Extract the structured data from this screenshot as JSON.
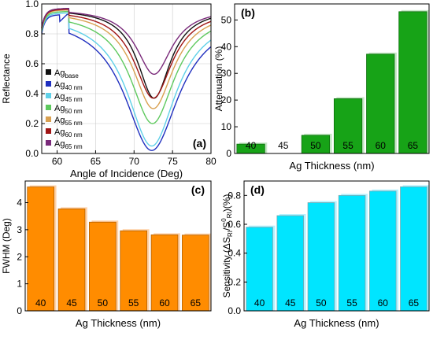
{
  "chart_data": [
    {
      "type": "line",
      "label": "(a)",
      "xlabel": "Angle of Incidence (Deg)",
      "ylabel": "Reflectance",
      "xlim": [
        58,
        80
      ],
      "ylim": [
        0,
        1.0
      ],
      "xticks": [
        60,
        65,
        70,
        75,
        80
      ],
      "yticks": [
        0.0,
        0.2,
        0.4,
        0.6,
        0.8,
        1.0
      ],
      "grid": true,
      "legend_position": "left",
      "series": [
        {
          "name": "Ag",
          "sub": "base",
          "color": "#111111",
          "x0": 72.6,
          "width": 2.6,
          "min": 0.37,
          "top": 0.97
        },
        {
          "name": "Ag",
          "sub": "40 nm",
          "color": "#1f2fbf",
          "x0": 72.3,
          "width": 4.3,
          "min": 0.02,
          "top": 0.93
        },
        {
          "name": "Ag",
          "sub": "45 nm",
          "color": "#5fd0e8",
          "x0": 72.3,
          "width": 3.9,
          "min": 0.05,
          "top": 0.94
        },
        {
          "name": "Ag",
          "sub": "50 nm",
          "color": "#5ec95e",
          "x0": 72.4,
          "width": 3.5,
          "min": 0.2,
          "top": 0.95
        },
        {
          "name": "Ag",
          "sub": "55 nm",
          "color": "#d9a050",
          "x0": 72.5,
          "width": 3.2,
          "min": 0.3,
          "top": 0.96
        },
        {
          "name": "Ag",
          "sub": "60 nm",
          "color": "#a01414",
          "x0": 72.5,
          "width": 3.0,
          "min": 0.37,
          "top": 0.965
        },
        {
          "name": "Ag",
          "sub": "65 nm",
          "color": "#7a2a7a",
          "x0": 72.6,
          "width": 2.8,
          "min": 0.53,
          "top": 0.97
        }
      ]
    },
    {
      "type": "bar",
      "label": "(b)",
      "xlabel": "Ag Thickness (nm)",
      "ylabel": "Attenuation (%)",
      "categories": [
        "40",
        "45",
        "50",
        "55",
        "60",
        "65"
      ],
      "values": [
        3.5,
        0,
        6.8,
        20.5,
        37.2,
        53.1
      ],
      "ylim": [
        0,
        56
      ],
      "yticks": [
        0,
        10,
        20,
        30,
        40,
        50
      ],
      "color": "#17a317"
    },
    {
      "type": "bar",
      "label": "(c)",
      "xlabel": "Ag Thickness (nm)",
      "ylabel": "FWHM (Deg)",
      "categories": [
        "40",
        "45",
        "50",
        "55",
        "60",
        "65"
      ],
      "values": [
        4.58,
        3.77,
        3.28,
        2.96,
        2.81,
        2.8
      ],
      "ylim": [
        0,
        4.8
      ],
      "yticks": [
        0,
        1,
        2,
        3,
        4
      ],
      "color": "#ff8c00"
    },
    {
      "type": "bar",
      "label": "(d)",
      "xlabel": "Ag Thickness (nm)",
      "ylabel": "Sensitivity (ΔS",
      "ylabel_parts": {
        "sub1": "RI",
        "mid": "/S",
        "sup": "0",
        "sub2": "RI",
        "tail": ")(%)"
      },
      "categories": [
        "40",
        "45",
        "50",
        "55",
        "60",
        "65"
      ],
      "values": [
        0.58,
        0.66,
        0.75,
        0.8,
        0.83,
        0.86
      ],
      "ylim": [
        0,
        0.9
      ],
      "yticks": [
        0.0,
        0.2,
        0.4,
        0.6,
        0.8
      ],
      "color": "#00e5ff"
    }
  ]
}
